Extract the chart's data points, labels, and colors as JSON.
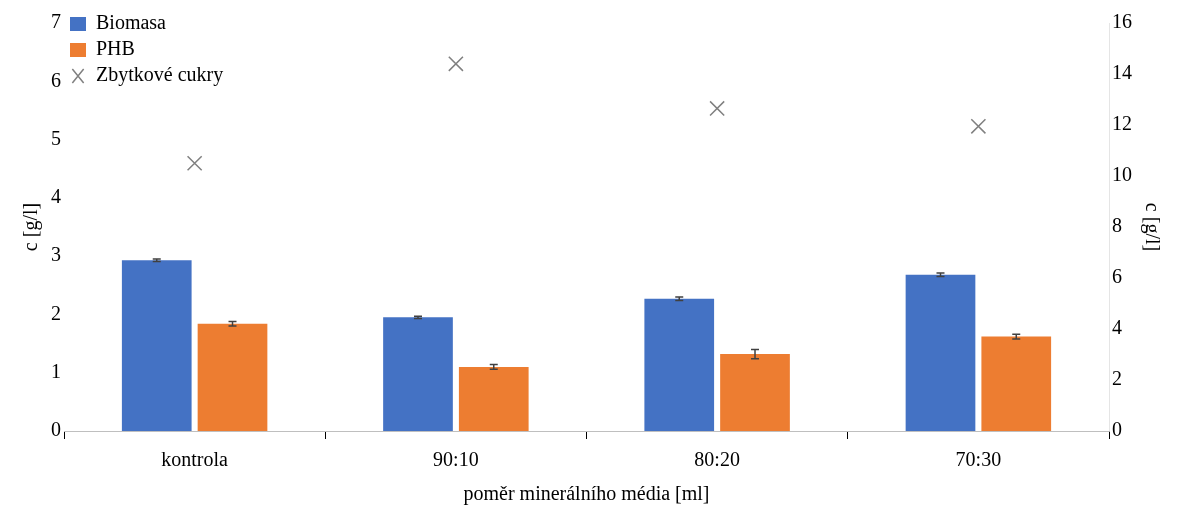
{
  "chart_data": {
    "type": "bar",
    "xlabel": "poměr minerálního média [ml]",
    "ylabel": "c [g/l]",
    "y2label": "c [g/l]",
    "categories": [
      "kontrola",
      "90:10",
      "80:20",
      "70:30"
    ],
    "series": [
      {
        "name": "Biomasa",
        "color": "#4472c4",
        "values": [
          2.93,
          1.95,
          2.27,
          2.68
        ],
        "errors": [
          0.02,
          0.02,
          0.03,
          0.03
        ]
      },
      {
        "name": "PHB",
        "color": "#ed7d31",
        "values": [
          1.84,
          1.1,
          1.32,
          1.62
        ],
        "errors": [
          0.04,
          0.04,
          0.08,
          0.04
        ]
      },
      {
        "name": "Zbytkové cukry",
        "type": "scatter",
        "color": "#808080",
        "axis": "y2",
        "marker": "cross",
        "values": [
          10.5,
          14.4,
          12.65,
          11.95
        ]
      }
    ],
    "ylim": [
      0,
      7
    ],
    "yticks": [
      0,
      1,
      2,
      3,
      4,
      5,
      6,
      7
    ],
    "y2lim": [
      0,
      16
    ],
    "y2ticks": [
      0,
      2,
      4,
      6,
      8,
      10,
      12,
      14,
      16
    ],
    "grid": false,
    "legend": "top left"
  }
}
